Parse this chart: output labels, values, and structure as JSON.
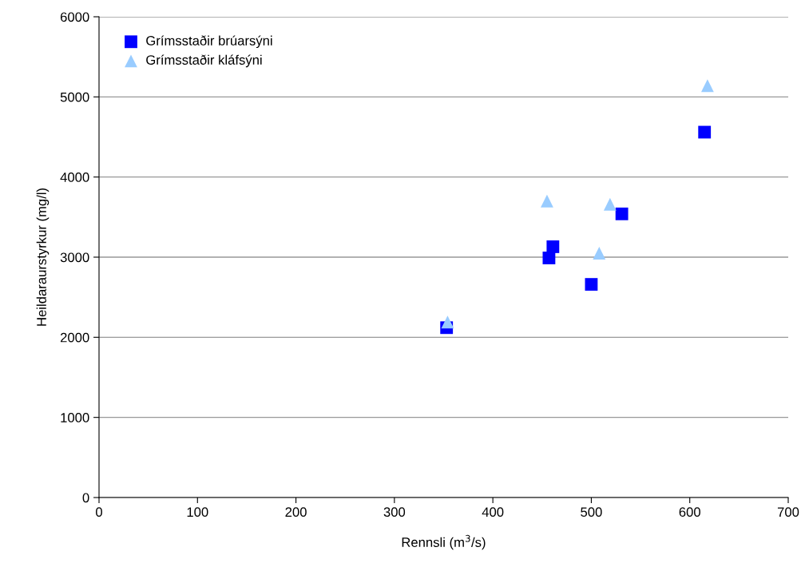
{
  "chart_data": {
    "type": "scatter",
    "xlabel": "Rennsli (m$^{3}$/s)",
    "ylabel": "Heildaraurstyrkur (mg/l)",
    "xlim": [
      0,
      700
    ],
    "xticks": [
      0,
      100,
      200,
      300,
      400,
      500,
      600,
      700
    ],
    "ylim": [
      0,
      6000
    ],
    "yticks": [
      0,
      1000,
      2000,
      3000,
      4000,
      5000,
      6000
    ],
    "grid": "y",
    "legend": "top left",
    "series": [
      {
        "name": "Grímsstaðir brúarsýni",
        "color": "#0000ff",
        "marker": "square",
        "x": [
          353,
          457,
          461,
          500,
          531,
          615
        ],
        "values": [
          2120,
          2990,
          3130,
          2660,
          3540,
          4560
        ]
      },
      {
        "name": "Grímsstaðir kláfsýni",
        "color": "#99ccff",
        "marker": "triangle",
        "x": [
          354,
          455,
          508,
          519,
          618
        ],
        "values": [
          2190,
          3700,
          3050,
          3660,
          5140
        ]
      }
    ]
  }
}
